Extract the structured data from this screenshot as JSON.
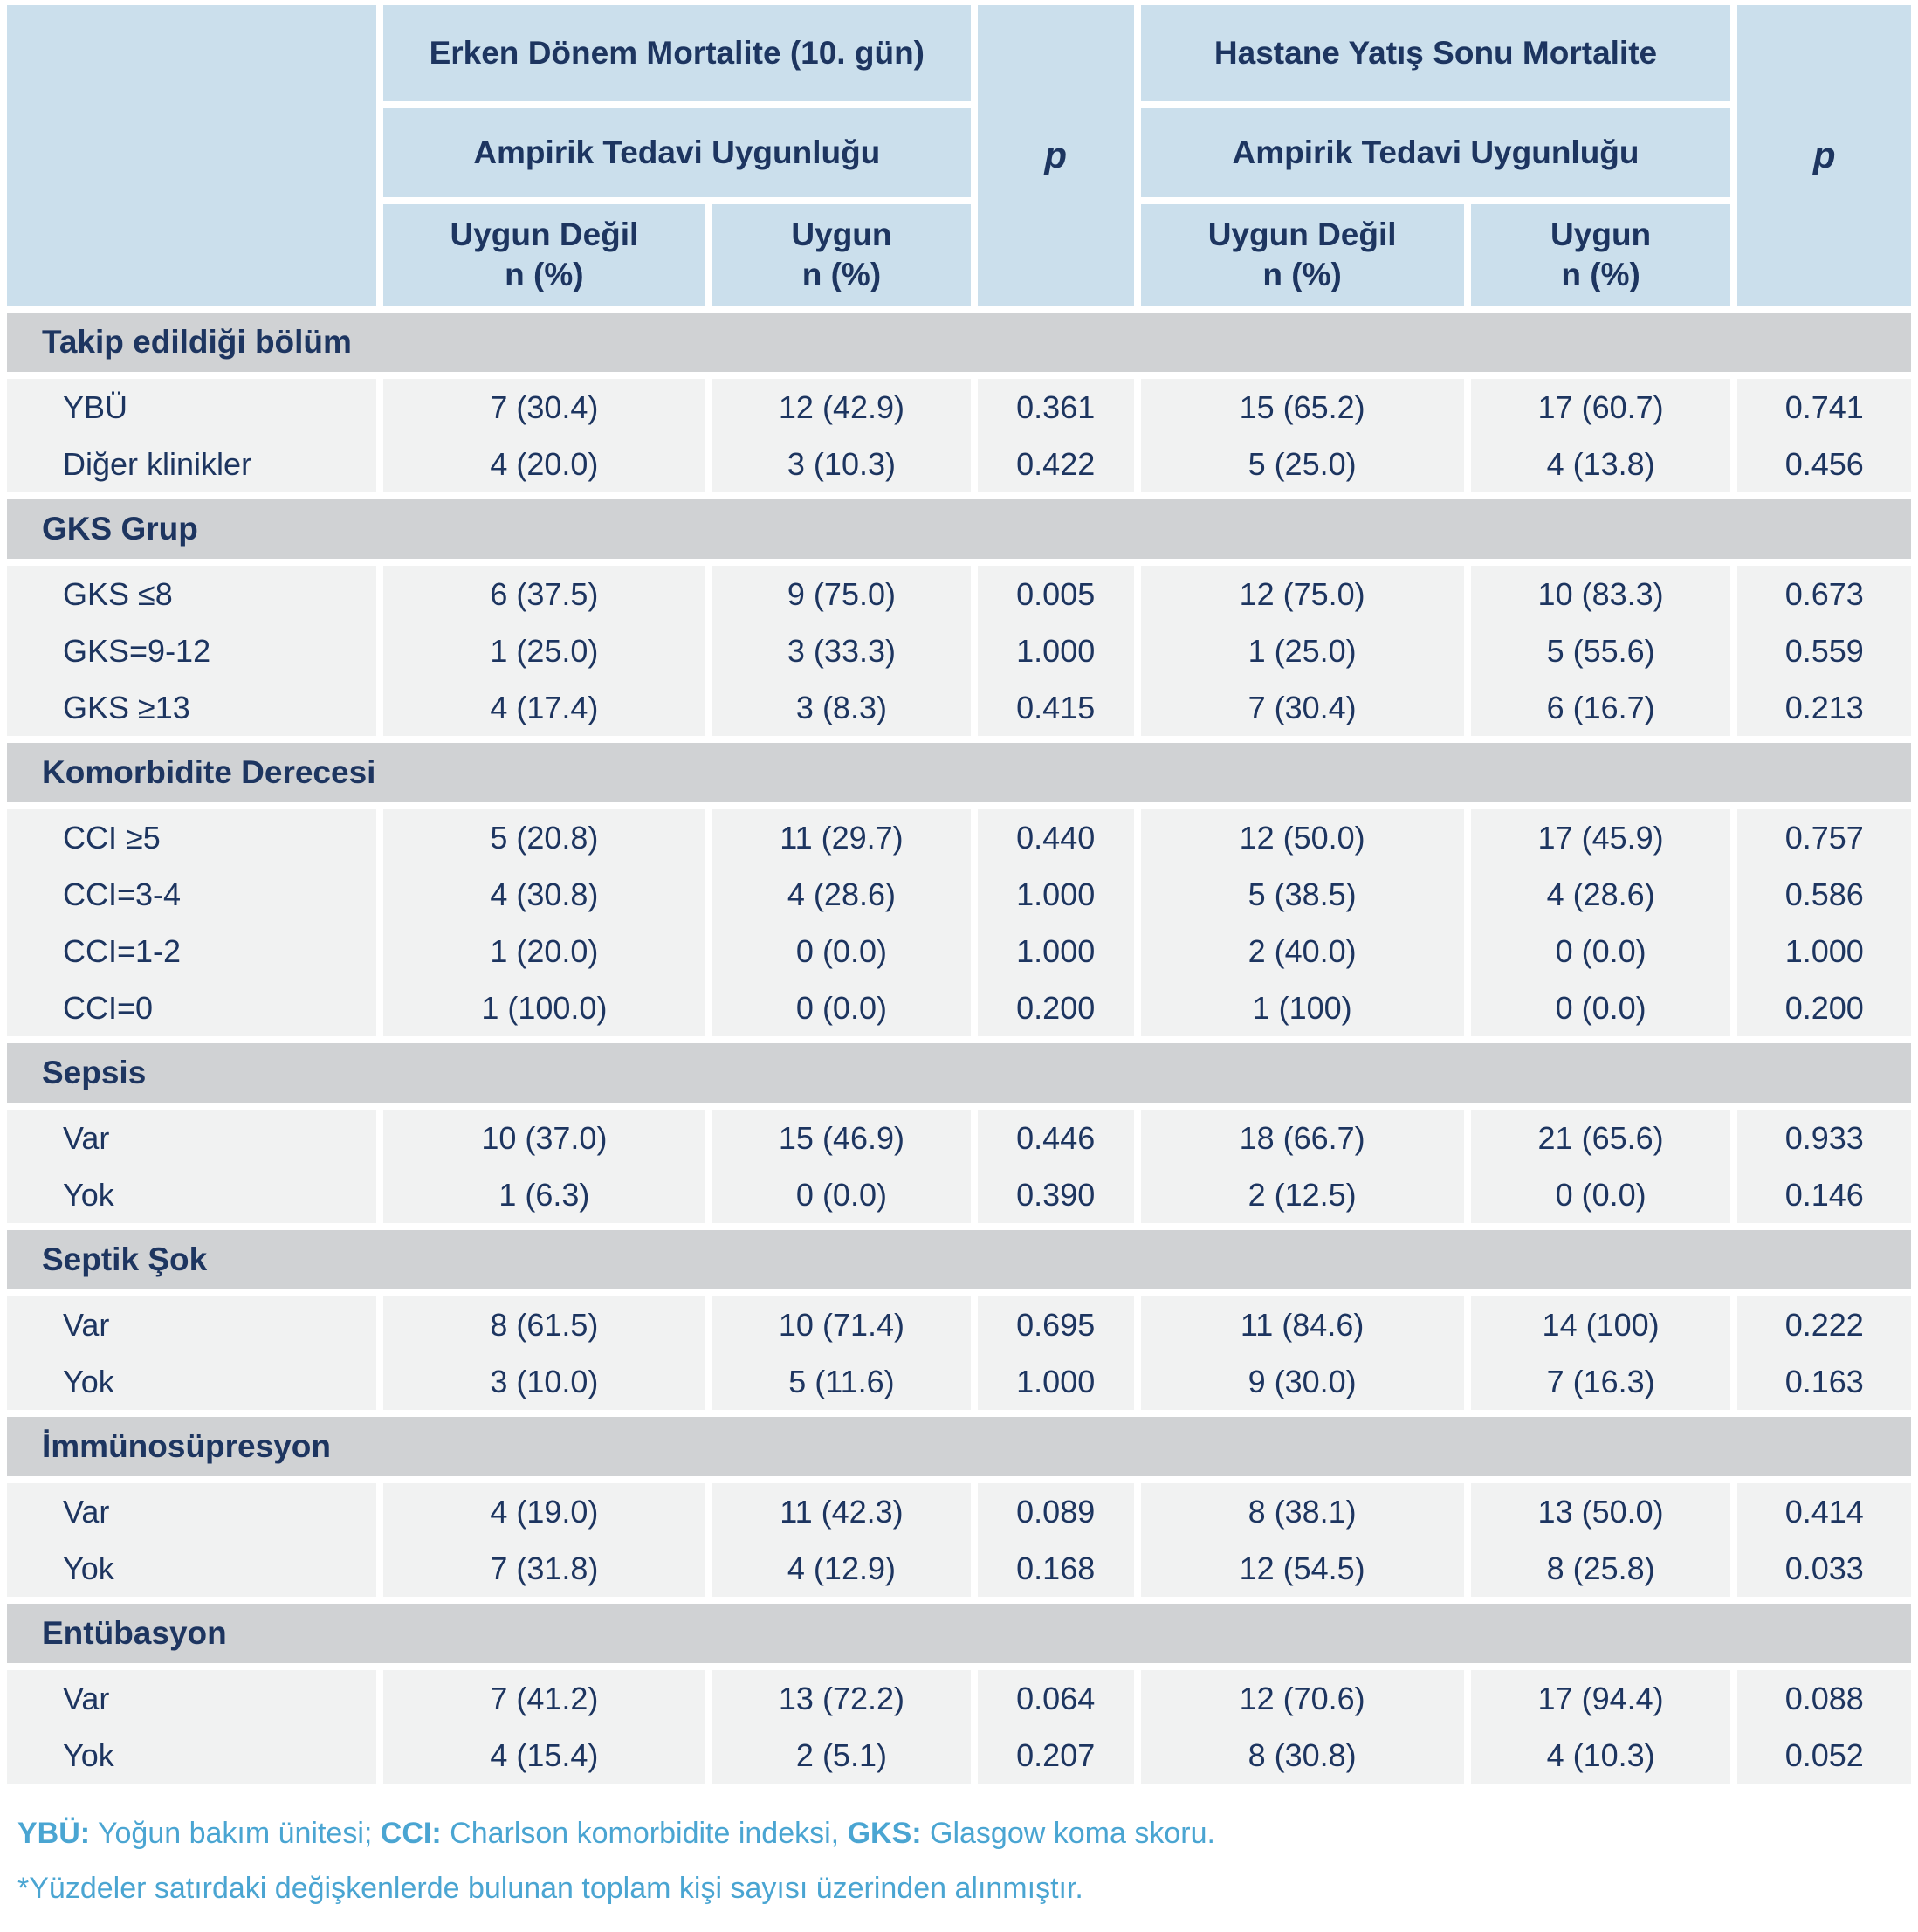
{
  "header": {
    "p_label": "p",
    "groups": [
      {
        "title": "Erken Dönem Mortalite (10. gün)",
        "subtitle": "Ampirik Tedavi Uygunluğu",
        "columns": [
          {
            "line1": "Uygun Değil",
            "line2": "n (%)"
          },
          {
            "line1": "Uygun",
            "line2": "n (%)"
          }
        ]
      },
      {
        "title": "Hastane Yatış Sonu Mortalite",
        "subtitle": "Ampirik Tedavi Uygunluğu",
        "columns": [
          {
            "line1": "Uygun Değil",
            "line2": "n (%)"
          },
          {
            "line1": "Uygun",
            "line2": "n (%)"
          }
        ]
      }
    ]
  },
  "sections": [
    {
      "title": "Takip edildiği bölüm",
      "rows": [
        {
          "label": "YBÜ",
          "values": [
            "7 (30.4)",
            "12 (42.9)",
            "0.361",
            "15 (65.2)",
            "17 (60.7)",
            "0.741"
          ]
        },
        {
          "label": "Diğer klinikler",
          "values": [
            "4 (20.0)",
            "3 (10.3)",
            "0.422",
            "5 (25.0)",
            "4 (13.8)",
            "0.456"
          ]
        }
      ]
    },
    {
      "title": "GKS Grup",
      "rows": [
        {
          "label": "GKS ≤8",
          "values": [
            "6 (37.5)",
            "9 (75.0)",
            "0.005",
            "12 (75.0)",
            "10 (83.3)",
            "0.673"
          ]
        },
        {
          "label": "GKS=9-12",
          "values": [
            "1 (25.0)",
            "3 (33.3)",
            "1.000",
            "1 (25.0)",
            "5 (55.6)",
            "0.559"
          ]
        },
        {
          "label": "GKS ≥13",
          "values": [
            "4 (17.4)",
            "3 (8.3)",
            "0.415",
            "7 (30.4)",
            "6 (16.7)",
            "0.213"
          ]
        }
      ]
    },
    {
      "title": "Komorbidite Derecesi",
      "rows": [
        {
          "label": "CCI ≥5",
          "values": [
            "5 (20.8)",
            "11 (29.7)",
            "0.440",
            "12 (50.0)",
            "17 (45.9)",
            "0.757"
          ]
        },
        {
          "label": "CCI=3-4",
          "values": [
            "4 (30.8)",
            "4 (28.6)",
            "1.000",
            "5 (38.5)",
            "4 (28.6)",
            "0.586"
          ]
        },
        {
          "label": "CCI=1-2",
          "values": [
            "1 (20.0)",
            "0 (0.0)",
            "1.000",
            "2 (40.0)",
            "0 (0.0)",
            "1.000"
          ]
        },
        {
          "label": "CCI=0",
          "values": [
            "1 (100.0)",
            "0 (0.0)",
            "0.200",
            "1 (100)",
            "0 (0.0)",
            "0.200"
          ]
        }
      ]
    },
    {
      "title": "Sepsis",
      "rows": [
        {
          "label": "Var",
          "values": [
            "10 (37.0)",
            "15 (46.9)",
            "0.446",
            "18 (66.7)",
            "21 (65.6)",
            "0.933"
          ]
        },
        {
          "label": "Yok",
          "values": [
            "1 (6.3)",
            "0 (0.0)",
            "0.390",
            "2 (12.5)",
            "0 (0.0)",
            "0.146"
          ]
        }
      ]
    },
    {
      "title": "Septik Şok",
      "rows": [
        {
          "label": "Var",
          "values": [
            "8 (61.5)",
            "10 (71.4)",
            "0.695",
            "11 (84.6)",
            "14 (100)",
            "0.222"
          ]
        },
        {
          "label": "Yok",
          "values": [
            "3 (10.0)",
            "5 (11.6)",
            "1.000",
            "9 (30.0)",
            "7 (16.3)",
            "0.163"
          ]
        }
      ]
    },
    {
      "title": "İmmünosüpresyon",
      "rows": [
        {
          "label": "Var",
          "values": [
            "4 (19.0)",
            "11 (42.3)",
            "0.089",
            "8 (38.1)",
            "13 (50.0)",
            "0.414"
          ]
        },
        {
          "label": "Yok",
          "values": [
            "7 (31.8)",
            "4 (12.9)",
            "0.168",
            "12 (54.5)",
            "8 (25.8)",
            "0.033"
          ]
        }
      ]
    },
    {
      "title": "Entübasyon",
      "rows": [
        {
          "label": "Var",
          "values": [
            "7 (41.2)",
            "13 (72.2)",
            "0.064",
            "12 (70.6)",
            "17 (94.4)",
            "0.088"
          ]
        },
        {
          "label": "Yok",
          "values": [
            "4 (15.4)",
            "2 (5.1)",
            "0.207",
            "8 (30.8)",
            "4 (10.3)",
            "0.052"
          ]
        }
      ]
    }
  ],
  "footnotes": {
    "abbreviations": [
      {
        "label": "YBÜ:",
        "text": " Yoğun bakım ünitesi; "
      },
      {
        "label": "CCI:",
        "text": " Charlson komorbidite indeksi, "
      },
      {
        "label": "GKS:",
        "text": " Glasgow koma skoru."
      }
    ],
    "percent_note": "*Yüzdeler satırdaki değişkenlerde bulunan toplam kişi sayısı üzerinden alınmıştır."
  },
  "colors": {
    "header_blue": "#cbdfec",
    "section_band_gray": "#d0d2d4",
    "row_fill": "#f1f2f2",
    "text_navy": "#1d3560",
    "footnote_blue": "#4aa5d2"
  }
}
